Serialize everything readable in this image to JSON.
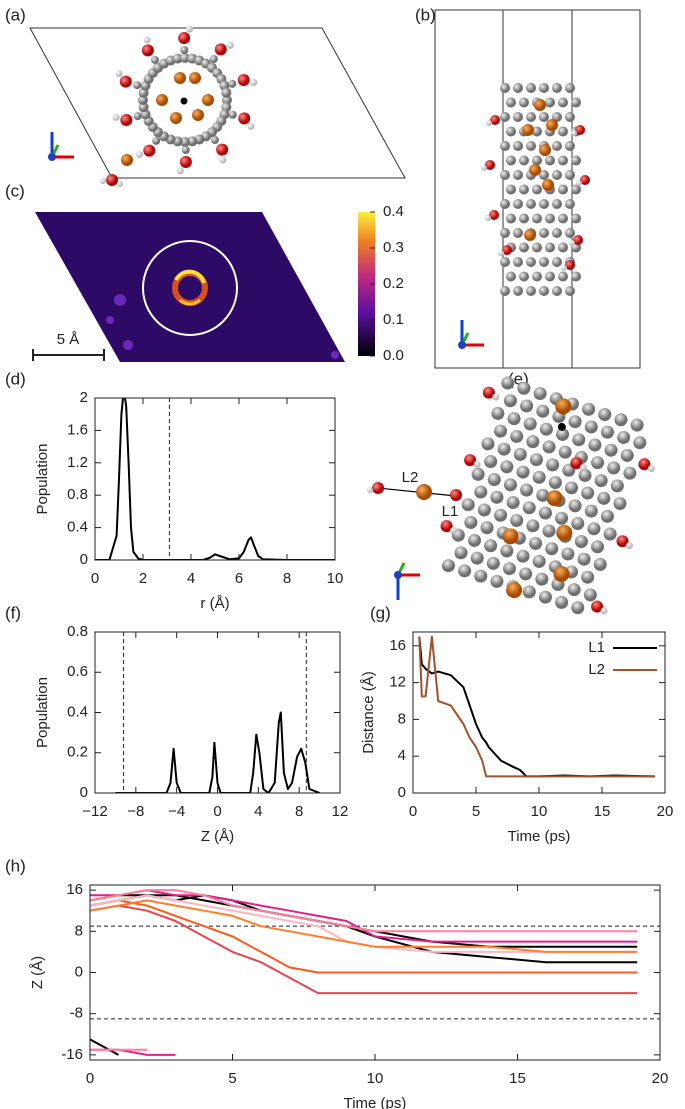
{
  "chart_data": [
    {
      "panel": "(a)",
      "type": "image"
    },
    {
      "panel": "(b)",
      "type": "image"
    },
    {
      "panel": "(c)",
      "type": "heatmap",
      "scale_label": "5 Å",
      "clim": [
        0,
        0.4
      ],
      "cticks": [
        {
          "value": 0,
          "label": "0.0"
        },
        0.1,
        0.2,
        0.3,
        0.4
      ]
    },
    {
      "panel": "(d)",
      "type": "line",
      "xlabel": "r (Å)",
      "ylabel": "Population",
      "color": "#000000",
      "x": [
        0,
        0.6,
        0.9,
        1.0,
        1.1,
        1.2,
        1.3,
        1.4,
        1.5,
        1.6,
        1.8,
        2,
        3,
        4.5,
        4.8,
        5.0,
        5.2,
        5.6,
        6.0,
        6.2,
        6.4,
        6.5,
        6.6,
        6.8,
        7,
        8,
        10
      ],
      "values": [
        0,
        0,
        0.3,
        1.0,
        1.8,
        2.1,
        1.9,
        1.2,
        0.4,
        0.1,
        0.02,
        0,
        0,
        0,
        0.03,
        0.07,
        0.05,
        0.01,
        0.02,
        0.1,
        0.25,
        0.28,
        0.2,
        0.05,
        0.01,
        0,
        0
      ],
      "xlim": [
        0,
        10
      ],
      "xticks": [
        0,
        2,
        4,
        6,
        8,
        10
      ],
      "ylim": [
        0,
        2
      ],
      "yticks": [
        0,
        0.4,
        0.8,
        1.2,
        1.6,
        2
      ],
      "vlines": [
        3.1
      ]
    },
    {
      "panel": "(e)",
      "type": "image",
      "annotations": [
        "L2",
        "L1"
      ]
    },
    {
      "panel": "(f)",
      "type": "line",
      "xlabel": "Z (Å)",
      "ylabel": "Population",
      "color": "#000000",
      "x": [
        -10,
        -5,
        -4.6,
        -4.3,
        -4.0,
        -3.6,
        -0.8,
        -0.5,
        -0.3,
        0,
        0.3,
        3.2,
        3.5,
        3.8,
        4.1,
        4.5,
        5.0,
        5.6,
        6.0,
        6.2,
        6.5,
        6.9,
        7.3,
        7.8,
        8.2,
        8.6,
        9,
        9.5,
        10
      ],
      "values": [
        0,
        0,
        0.05,
        0.22,
        0.05,
        0,
        0,
        0.08,
        0.25,
        0.05,
        0,
        0,
        0.1,
        0.29,
        0.2,
        0.02,
        0,
        0.05,
        0.35,
        0.4,
        0.1,
        0.02,
        0.05,
        0.18,
        0.22,
        0.15,
        0.02,
        0.01,
        0
      ],
      "xlim": [
        -12,
        12
      ],
      "xticks": [
        {
          "value": -12,
          "label": "−12"
        },
        {
          "value": -8,
          "label": "−8"
        },
        {
          "value": -4,
          "label": "−4"
        },
        0,
        4,
        8,
        12
      ],
      "ylim": [
        0,
        0.8
      ],
      "yticks": [
        0,
        0.2,
        0.4,
        0.6,
        0.8
      ],
      "vlines": [
        -9.2,
        8.7
      ]
    },
    {
      "panel": "(g)",
      "type": "line",
      "xlabel": "Time (ps)",
      "ylabel": "Distance (Å)",
      "legend": "upper right",
      "x": [
        0.5,
        0.7,
        1,
        1.5,
        2,
        3,
        4,
        4.5,
        5,
        5.5,
        5.8,
        6,
        7,
        8,
        8.5,
        9,
        10,
        12,
        14,
        16,
        19.2
      ],
      "series": [
        {
          "name": "L1",
          "color": "#000000",
          "values": [
            17,
            14,
            13.5,
            13,
            13.2,
            12.8,
            11.5,
            9.5,
            7.5,
            6,
            5.5,
            5,
            3.5,
            2.8,
            2.5,
            1.8,
            1.8,
            1.9,
            1.8,
            1.9,
            1.8
          ]
        },
        {
          "name": "L2",
          "color": "#a0522d",
          "values": [
            17,
            10.5,
            10.5,
            17,
            10,
            9.5,
            7.5,
            6,
            5,
            3.5,
            1.8,
            1.8,
            1.8,
            1.8,
            1.8,
            1.8,
            1.8,
            1.8,
            1.8,
            1.8,
            1.8
          ]
        }
      ],
      "xlim": [
        0,
        20
      ],
      "xticks": [
        0,
        5,
        10,
        15,
        20
      ],
      "ylim": [
        0,
        17.5
      ],
      "yticks": [
        0,
        4,
        8,
        12,
        16
      ]
    },
    {
      "panel": "(h)",
      "type": "line",
      "xlabel": "Time (ps)",
      "ylabel": "Z (Å)",
      "x": [
        0,
        1,
        2,
        3,
        4,
        5,
        6,
        7,
        8,
        9,
        10,
        12,
        14,
        16,
        19.2
      ],
      "series": [
        {
          "color": "#000000",
          "values": [
            14,
            15,
            15,
            15,
            14,
            13,
            12,
            11,
            10,
            9,
            7,
            4,
            3,
            2,
            2
          ]
        },
        {
          "color": "#000000",
          "values": [
            13,
            14,
            15,
            14,
            15,
            14,
            12,
            11,
            10,
            9,
            8,
            6,
            5,
            5,
            5
          ]
        },
        {
          "color": "#ff5a1f",
          "values": [
            13,
            14,
            13,
            11,
            9,
            7,
            4,
            1,
            0,
            0,
            0,
            0,
            0,
            0,
            0
          ]
        },
        {
          "color": "#e8454f",
          "values": [
            12,
            13,
            12,
            10,
            7,
            4,
            2,
            -1,
            -4,
            -4,
            -4,
            -4,
            -4,
            -4,
            -4
          ]
        },
        {
          "color": "#e0218a",
          "values": [
            15,
            15,
            16,
            15,
            15,
            14,
            13,
            12,
            11,
            10,
            7,
            6,
            6,
            6,
            6
          ]
        },
        {
          "color": "#ff7f9f",
          "values": [
            14,
            15,
            16,
            16,
            15,
            13,
            12,
            11,
            10,
            9,
            8,
            8,
            8,
            8,
            8
          ]
        },
        {
          "color": "#ffb6c1",
          "values": [
            13,
            14,
            15,
            14,
            13,
            12,
            11,
            10,
            9,
            6,
            5,
            4,
            4,
            4,
            4
          ]
        },
        {
          "color": "#ff7f2a",
          "values": [
            12,
            13,
            14,
            13,
            12,
            11,
            9,
            8,
            7,
            6,
            5,
            5,
            5,
            4,
            4
          ]
        },
        {
          "color": "#000000",
          "values": [
            -13,
            -16,
            null,
            null,
            null,
            null,
            null,
            null,
            null,
            null,
            null,
            null,
            null,
            null,
            null
          ]
        },
        {
          "color": "#e0218a",
          "values": [
            -15,
            -15,
            -16,
            -16,
            null,
            null,
            null,
            null,
            null,
            null,
            null,
            null,
            null,
            null,
            null
          ]
        },
        {
          "color": "#ff7f9f",
          "values": [
            -15,
            -15,
            -15,
            null,
            null,
            null,
            null,
            null,
            null,
            null,
            null,
            null,
            null,
            null,
            null
          ]
        }
      ],
      "xlim": [
        0,
        20
      ],
      "xticks": [
        0,
        5,
        10,
        15,
        20
      ],
      "ylim": [
        -17,
        17
      ],
      "yticks": [
        -16,
        -8,
        0,
        8,
        16
      ],
      "hlines": [
        -9,
        9
      ]
    }
  ]
}
